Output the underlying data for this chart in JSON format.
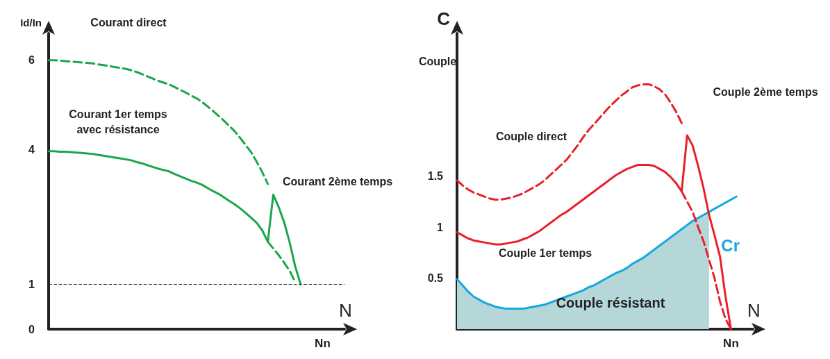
{
  "chart_data": [
    {
      "type": "line",
      "ylabel": "Id/In",
      "xlabel": "N",
      "ylim": [
        0,
        6.6
      ],
      "yticks": [
        0,
        1,
        4,
        6
      ],
      "grid": false,
      "marker": "none",
      "categories": [
        null,
        null,
        null,
        null,
        null,
        null,
        null,
        null,
        null,
        null,
        null,
        null,
        null,
        null,
        null,
        null,
        null,
        null,
        null,
        null,
        null,
        null,
        null,
        null,
        null,
        null,
        null,
        null,
        null,
        null,
        null,
        null,
        null,
        null,
        null,
        null,
        null,
        null,
        null,
        null,
        null,
        null,
        null,
        null,
        null,
        null,
        null,
        null,
        null,
        null,
        "Nn",
        null,
        null,
        null,
        null
      ],
      "series": [
        {
          "color": "#1aa64a",
          "line_style": "dashed",
          "values": [
            6.0,
            6.0,
            5.99,
            5.98,
            5.97,
            5.96,
            5.95,
            5.94,
            5.93,
            5.91,
            5.89,
            5.87,
            5.85,
            5.83,
            5.81,
            5.78,
            5.74,
            5.69,
            5.64,
            5.59,
            5.54,
            5.5,
            5.46,
            5.4,
            5.34,
            5.28,
            5.21,
            5.15,
            5.07,
            4.97,
            4.87,
            4.76,
            4.65,
            4.53,
            4.41,
            4.26,
            4.1,
            3.94,
            3.73,
            3.5,
            3.24,
            null,
            null,
            null,
            null,
            null,
            null,
            null,
            null,
            null,
            null,
            null,
            null,
            null,
            null
          ]
        },
        {
          "color": "#1aa64a",
          "line_style": "solid",
          "values": [
            3.97,
            3.97,
            3.96,
            3.96,
            3.95,
            3.94,
            3.93,
            3.92,
            3.91,
            3.89,
            3.87,
            3.85,
            3.83,
            3.81,
            3.79,
            3.77,
            3.73,
            3.7,
            3.66,
            3.62,
            3.58,
            3.55,
            3.52,
            3.46,
            3.41,
            3.36,
            3.31,
            3.27,
            3.22,
            3.15,
            3.08,
            3.02,
            2.94,
            2.86,
            2.78,
            2.69,
            2.59,
            2.48,
            2.37,
            2.2,
            1.95,
            null,
            null,
            null,
            null,
            null,
            null,
            null,
            null,
            null,
            null,
            null,
            null,
            null,
            null
          ]
        },
        {
          "color": "#1aa64a",
          "line_style": "solid",
          "values": [
            null,
            null,
            null,
            null,
            null,
            null,
            null,
            null,
            null,
            null,
            null,
            null,
            null,
            null,
            null,
            null,
            null,
            null,
            null,
            null,
            null,
            null,
            null,
            null,
            null,
            null,
            null,
            null,
            null,
            null,
            null,
            null,
            null,
            null,
            null,
            null,
            null,
            null,
            null,
            null,
            1.95,
            3.0,
            2.72,
            2.38,
            1.93,
            1.4,
            1.0,
            null,
            null,
            null,
            null,
            null,
            null,
            null,
            null
          ]
        },
        {
          "color": "#1aa64a",
          "line_style": "dashed",
          "values": [
            null,
            null,
            null,
            null,
            null,
            null,
            null,
            null,
            null,
            null,
            null,
            null,
            null,
            null,
            null,
            null,
            null,
            null,
            null,
            null,
            null,
            null,
            null,
            null,
            null,
            null,
            null,
            null,
            null,
            null,
            null,
            null,
            null,
            null,
            null,
            null,
            null,
            null,
            null,
            null,
            1.95,
            1.8,
            1.65,
            1.48,
            1.3,
            1.05,
            null,
            null,
            null,
            null,
            null,
            null,
            null,
            null,
            null
          ]
        }
      ],
      "ref_lines": [
        {
          "axis": "y",
          "value": 1,
          "color": "#333333",
          "line_style": "dashed"
        }
      ],
      "annotations": [
        "Courant direct",
        "Courant 1er temps\navec résistance",
        "Courant 2ème temps"
      ]
    },
    {
      "type": "line",
      "ylabel": "C",
      "xlabel": "N",
      "ylim": [
        0,
        2.9
      ],
      "yticks": [
        0.5,
        1,
        1.5
      ],
      "grid": false,
      "marker": "none",
      "categories": [
        null,
        null,
        null,
        null,
        null,
        null,
        null,
        null,
        null,
        null,
        null,
        null,
        null,
        null,
        null,
        null,
        null,
        null,
        null,
        null,
        null,
        null,
        null,
        null,
        null,
        null,
        null,
        null,
        null,
        null,
        null,
        null,
        null,
        null,
        null,
        null,
        null,
        null,
        null,
        null,
        null,
        null,
        null,
        null,
        null,
        null,
        null,
        null,
        null,
        null,
        "Nn",
        null,
        null,
        null,
        null
      ],
      "series": [
        {
          "type": "area",
          "color": "#b5d7d8",
          "values": [
            0.49,
            0.43,
            0.37,
            0.32,
            0.29,
            0.26,
            0.24,
            0.22,
            0.21,
            0.2,
            0.2,
            0.2,
            0.2,
            0.21,
            0.22,
            0.23,
            0.24,
            0.26,
            0.28,
            0.3,
            0.32,
            0.34,
            0.36,
            0.38,
            0.41,
            0.43,
            0.46,
            0.49,
            0.52,
            0.55,
            0.57,
            0.6,
            0.64,
            0.67,
            0.7,
            0.74,
            0.78,
            0.82,
            0.86,
            0.9,
            0.94,
            0.98,
            1.02,
            1.06,
            1.09,
            1.12,
            1.15,
            null,
            null,
            null,
            null,
            null,
            null,
            null,
            null
          ]
        },
        {
          "name": "Cr",
          "color": "#16a6e0",
          "line_style": "solid",
          "values": [
            0.49,
            0.43,
            0.37,
            0.32,
            0.29,
            0.26,
            0.24,
            0.22,
            0.21,
            0.2,
            0.2,
            0.2,
            0.2,
            0.21,
            0.22,
            0.23,
            0.24,
            0.26,
            0.28,
            0.3,
            0.32,
            0.34,
            0.36,
            0.38,
            0.41,
            0.43,
            0.46,
            0.49,
            0.52,
            0.55,
            0.57,
            0.6,
            0.64,
            0.67,
            0.7,
            0.74,
            0.78,
            0.82,
            0.86,
            0.9,
            0.94,
            0.98,
            1.02,
            1.06,
            1.09,
            1.12,
            1.15,
            1.18,
            1.21,
            1.24,
            1.27,
            1.3,
            null,
            null,
            null
          ]
        },
        {
          "color": "#e8202a",
          "line_style": "dashed",
          "values": [
            1.46,
            1.41,
            1.37,
            1.34,
            1.32,
            1.3,
            1.28,
            1.27,
            1.27,
            1.28,
            1.29,
            1.31,
            1.33,
            1.36,
            1.39,
            1.42,
            1.46,
            1.51,
            1.56,
            1.61,
            1.66,
            1.73,
            1.8,
            1.88,
            1.95,
            2.01,
            2.07,
            2.13,
            2.19,
            2.24,
            2.29,
            2.33,
            2.37,
            2.39,
            2.4,
            2.4,
            2.38,
            2.35,
            2.3,
            2.22,
            2.13,
            2.02,
            null,
            null,
            null,
            null,
            null,
            null,
            null,
            null,
            null,
            null,
            null,
            null,
            null
          ]
        },
        {
          "color": "#e8202a",
          "line_style": "solid",
          "values": [
            0.95,
            0.92,
            0.89,
            0.87,
            0.86,
            0.85,
            0.84,
            0.83,
            0.83,
            0.84,
            0.85,
            0.86,
            0.88,
            0.9,
            0.93,
            0.96,
            1.0,
            1.04,
            1.08,
            1.12,
            1.15,
            1.19,
            1.23,
            1.27,
            1.31,
            1.35,
            1.39,
            1.43,
            1.47,
            1.51,
            1.54,
            1.57,
            1.59,
            1.61,
            1.61,
            1.61,
            1.6,
            1.57,
            1.54,
            1.49,
            1.43,
            1.35,
            null,
            null,
            null,
            null,
            null,
            null,
            null,
            null,
            null,
            null,
            null,
            null,
            null
          ]
        },
        {
          "color": "#e8202a",
          "line_style": "solid",
          "values": [
            null,
            null,
            null,
            null,
            null,
            null,
            null,
            null,
            null,
            null,
            null,
            null,
            null,
            null,
            null,
            null,
            null,
            null,
            null,
            null,
            null,
            null,
            null,
            null,
            null,
            null,
            null,
            null,
            null,
            null,
            null,
            null,
            null,
            null,
            null,
            null,
            null,
            null,
            null,
            null,
            null,
            1.35,
            1.9,
            1.8,
            1.6,
            1.38,
            1.12,
            0.92,
            0.71,
            0.32,
            0,
            null,
            null,
            null,
            null
          ]
        },
        {
          "color": "#e8202a",
          "line_style": "dashed",
          "values": [
            null,
            null,
            null,
            null,
            null,
            null,
            null,
            null,
            null,
            null,
            null,
            null,
            null,
            null,
            null,
            null,
            null,
            null,
            null,
            null,
            null,
            null,
            null,
            null,
            null,
            null,
            null,
            null,
            null,
            null,
            null,
            null,
            null,
            null,
            null,
            null,
            null,
            null,
            null,
            null,
            null,
            1.35,
            1.25,
            1.15,
            1.0,
            0.86,
            0.68,
            0.5,
            0.27,
            0.1,
            0,
            null,
            null,
            null,
            null
          ]
        }
      ],
      "annotations": [
        "Couple",
        "Couple direct",
        "Couple 1er temps",
        "Couple 2ème temps",
        "Couple résistant"
      ]
    }
  ]
}
